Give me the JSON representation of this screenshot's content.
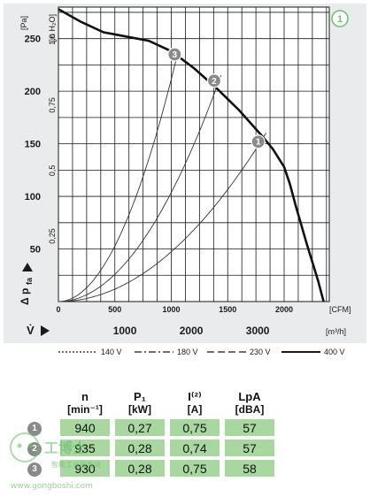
{
  "chart_data": {
    "type": "line",
    "figure_badge": "1",
    "y_primary": {
      "label_main": "Δ p",
      "label_sub": "fa",
      "unit": "[Pa]",
      "range": [
        0,
        280
      ],
      "ticks": [
        50,
        100,
        150,
        200,
        250
      ],
      "tick_labels": [
        "50",
        "100",
        "150",
        "200",
        "250"
      ]
    },
    "y_secondary": {
      "unit": "[in H₂O]",
      "ticks": [
        0.25,
        0.5,
        0.75,
        1.0
      ],
      "tick_labels": [
        "0,25",
        "0,5",
        "0,75",
        "1,0"
      ]
    },
    "x_primary": {
      "unit": "[CFM]",
      "range": [
        0,
        2400
      ],
      "ticks": [
        0,
        500,
        1000,
        1500,
        2000
      ],
      "tick_labels": [
        "0",
        "500",
        "1000",
        "1500",
        "2000"
      ]
    },
    "x_secondary": {
      "label": "V̇",
      "unit": "[m³/h]",
      "ticks": [
        1000,
        2000,
        3000
      ],
      "tick_labels": [
        "1000",
        "2000",
        "3000"
      ]
    },
    "series": [
      {
        "name": "400 V",
        "style": "solid",
        "x": [
          0,
          200,
          400,
          600,
          800,
          1000,
          1200,
          1400,
          1600,
          1800,
          1900,
          2000,
          2050,
          2100,
          2200,
          2300,
          2350
        ],
        "y": [
          278,
          266,
          256,
          252,
          248,
          238,
          222,
          203,
          182,
          158,
          145,
          128,
          112,
          92,
          55,
          20,
          0
        ]
      },
      {
        "name": "230 V",
        "style": "dash",
        "x": [],
        "y": []
      },
      {
        "name": "180 V",
        "style": "dashdot",
        "x": [],
        "y": []
      },
      {
        "name": "140 V",
        "style": "dotted",
        "x": [],
        "y": []
      }
    ],
    "system_curves": [
      {
        "k_x_at": 1070,
        "k_y_at": 242,
        "x_end": 1070
      },
      {
        "k_x_at": 1450,
        "k_y_at": 218,
        "x_end": 1450
      },
      {
        "k_x_at": 1850,
        "k_y_at": 162,
        "x_end": 1850
      }
    ],
    "operating_points": [
      {
        "label": "1",
        "x": 1770,
        "y": 152
      },
      {
        "label": "2",
        "x": 1380,
        "y": 210
      },
      {
        "label": "3",
        "x": 1030,
        "y": 235
      }
    ],
    "legend": [
      "140 V",
      "180 V",
      "230 V",
      "400 V"
    ]
  },
  "table": {
    "headers": [
      {
        "main": "n",
        "sub": "[min⁻¹]"
      },
      {
        "main": "P₁",
        "sub": "[kW]"
      },
      {
        "main": "I⁽²⁾",
        "sub": "[A]"
      },
      {
        "main": "LpA",
        "sub": "[dBA]"
      }
    ],
    "rows": [
      {
        "label": "1",
        "values": [
          "940",
          "0,27",
          "0,75",
          "57"
        ]
      },
      {
        "label": "2",
        "values": [
          "935",
          "0,28",
          "0,74",
          "57"
        ]
      },
      {
        "label": "3",
        "values": [
          "930",
          "0,28",
          "0,75",
          "58"
        ]
      }
    ]
  },
  "watermark": {
    "cn_text": "工博士",
    "sub_text": "智能工业服务商",
    "url": "www.gongboshi.com"
  },
  "colors": {
    "panel_bg": "#e9ebec",
    "grid": "#1a1a1a",
    "cell_green": "#a8d8a0",
    "badge_grey": "#8a8a8a",
    "badge_green": "#6ac06a"
  }
}
